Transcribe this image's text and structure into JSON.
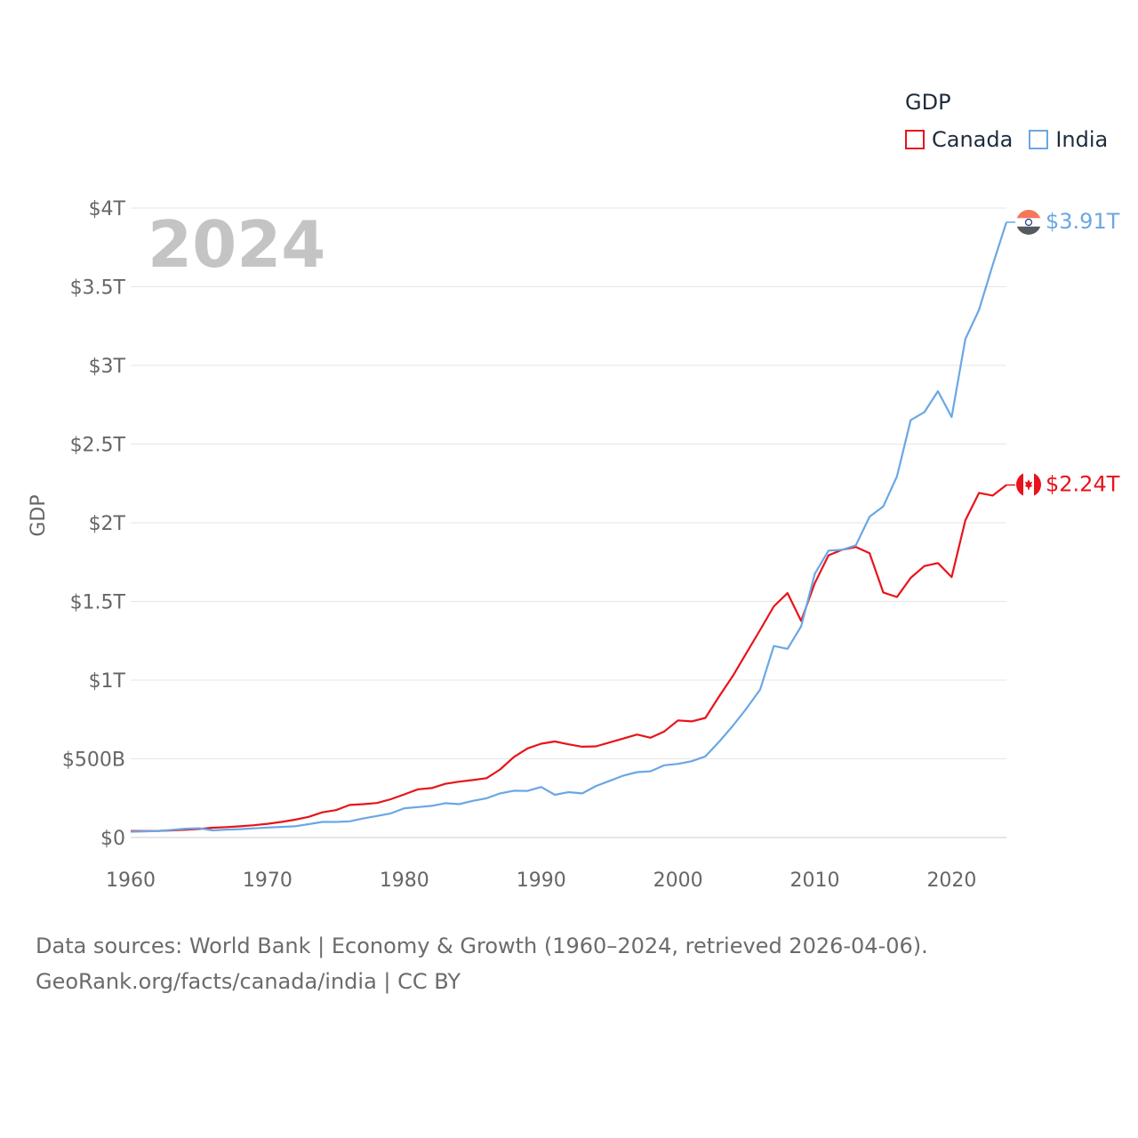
{
  "chart_data": {
    "type": "line",
    "title": "GDP",
    "year_label": "2024",
    "ylabel": "GDP",
    "xlabel": "",
    "xlim": [
      1960,
      2024
    ],
    "ylim": [
      0,
      4
    ],
    "x_ticks": [
      1960,
      1970,
      1980,
      1990,
      2000,
      2010,
      2020
    ],
    "x_tick_labels": [
      "1960",
      "1970",
      "1980",
      "1990",
      "2000",
      "2010",
      "2020"
    ],
    "y_ticks": [
      0,
      0.5,
      1,
      1.5,
      2,
      2.5,
      3,
      3.5,
      4
    ],
    "y_tick_labels": [
      "$0",
      "$500B",
      "$1T",
      "$1.5T",
      "$2T",
      "$2.5T",
      "$3T",
      "$3.5T",
      "$4T"
    ],
    "grid": true,
    "legend_position": "top-right",
    "units": "trillion USD",
    "years": [
      1960,
      1961,
      1962,
      1963,
      1964,
      1965,
      1966,
      1967,
      1968,
      1969,
      1970,
      1971,
      1972,
      1973,
      1974,
      1975,
      1976,
      1977,
      1978,
      1979,
      1980,
      1981,
      1982,
      1983,
      1984,
      1985,
      1986,
      1987,
      1988,
      1989,
      1990,
      1991,
      1992,
      1993,
      1994,
      1995,
      1996,
      1997,
      1998,
      1999,
      2000,
      2001,
      2002,
      2003,
      2004,
      2005,
      2006,
      2007,
      2008,
      2009,
      2010,
      2011,
      2012,
      2013,
      2014,
      2015,
      2016,
      2017,
      2018,
      2019,
      2020,
      2021,
      2022,
      2023,
      2024
    ],
    "series": [
      {
        "name": "Canada",
        "color": "#e8131b",
        "end_label": "$2.24T",
        "values": [
          0.041,
          0.041,
          0.042,
          0.045,
          0.049,
          0.054,
          0.062,
          0.066,
          0.071,
          0.078,
          0.087,
          0.099,
          0.113,
          0.131,
          0.16,
          0.174,
          0.207,
          0.212,
          0.219,
          0.243,
          0.274,
          0.306,
          0.314,
          0.341,
          0.355,
          0.365,
          0.377,
          0.432,
          0.511,
          0.566,
          0.596,
          0.61,
          0.592,
          0.577,
          0.579,
          0.604,
          0.629,
          0.654,
          0.634,
          0.674,
          0.744,
          0.738,
          0.76,
          0.896,
          1.026,
          1.173,
          1.319,
          1.469,
          1.553,
          1.376,
          1.617,
          1.793,
          1.829,
          1.846,
          1.806,
          1.557,
          1.528,
          1.65,
          1.725,
          1.744,
          1.655,
          2.016,
          2.19,
          2.173,
          2.24
        ]
      },
      {
        "name": "India",
        "color": "#6aa7e4",
        "end_label": "$3.91T",
        "values": [
          0.037,
          0.039,
          0.042,
          0.048,
          0.056,
          0.059,
          0.045,
          0.05,
          0.053,
          0.058,
          0.063,
          0.067,
          0.071,
          0.085,
          0.099,
          0.099,
          0.103,
          0.121,
          0.137,
          0.153,
          0.186,
          0.193,
          0.201,
          0.218,
          0.212,
          0.233,
          0.249,
          0.28,
          0.297,
          0.296,
          0.321,
          0.271,
          0.288,
          0.28,
          0.327,
          0.36,
          0.393,
          0.415,
          0.421,
          0.459,
          0.468,
          0.485,
          0.515,
          0.608,
          0.709,
          0.82,
          0.94,
          1.217,
          1.199,
          1.342,
          1.676,
          1.823,
          1.828,
          1.857,
          2.039,
          2.104,
          2.295,
          2.652,
          2.703,
          2.836,
          2.672,
          3.167,
          3.353,
          3.639,
          3.91
        ]
      }
    ]
  },
  "footer": {
    "line1": "Data sources: World Bank | Economy & Growth (1960–2024, retrieved 2026-04-06).",
    "line2": "GeoRank.org/facts/canada/india | CC BY"
  }
}
